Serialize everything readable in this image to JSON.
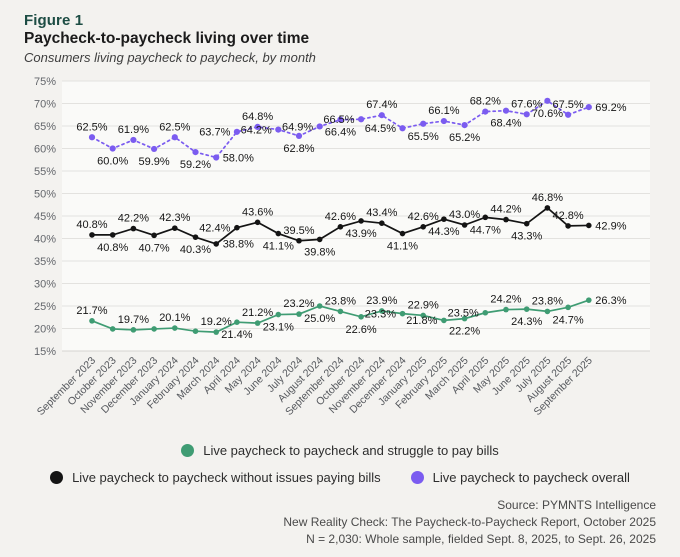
{
  "figure": {
    "label": "Figure 1",
    "title": "Paycheck-to-paycheck living over time",
    "subtitle": "Consumers living paycheck to paycheck, by month"
  },
  "chart_data": {
    "type": "line",
    "x": [
      "September 2023",
      "October 2023",
      "November 2023",
      "December 2023",
      "January 2024",
      "February 2024",
      "March 2024",
      "April 2024",
      "May 2024",
      "June 2024",
      "July 2024",
      "August 2024",
      "September 2024",
      "October 2024",
      "November 2024",
      "December 2024",
      "January 2025",
      "February 2025",
      "March 2025",
      "April 2025",
      "May 2025",
      "June 2025",
      "July 2025",
      "August 2025",
      "September 2025"
    ],
    "ylim": [
      15,
      75
    ],
    "ytick_step": 5,
    "ytick_suffix": "%",
    "grid": true,
    "legend_position": "bottom",
    "series": [
      {
        "name": "Live paycheck to paycheck overall",
        "color": "#7B5CF0",
        "dashed": true,
        "point_r": 3.1,
        "values": [
          62.5,
          60.0,
          61.9,
          59.9,
          62.5,
          59.2,
          58.0,
          63.7,
          64.8,
          64.2,
          62.8,
          64.9,
          66.4,
          66.5,
          67.4,
          64.5,
          65.5,
          66.1,
          65.2,
          68.2,
          68.4,
          67.6,
          70.6,
          67.5,
          69.2
        ],
        "label_pos": [
          "above",
          "below",
          "above",
          "below",
          "above",
          "below",
          "right",
          "left",
          "above",
          "left",
          "below",
          "left",
          "below",
          "left",
          "above",
          "left",
          "below",
          "above",
          "below",
          "above",
          "below",
          "above",
          "below",
          "above",
          "right"
        ]
      },
      {
        "name": "Live paycheck to paycheck without issues paying bills",
        "color": "#141414",
        "dashed": false,
        "point_r": 2.8,
        "values": [
          40.8,
          40.8,
          42.2,
          40.7,
          42.3,
          40.3,
          38.8,
          42.4,
          43.6,
          41.1,
          39.5,
          39.8,
          42.6,
          43.9,
          43.4,
          41.1,
          42.6,
          44.3,
          43.0,
          44.7,
          44.2,
          43.3,
          46.8,
          42.8,
          42.9
        ],
        "label_pos": [
          "above",
          "below",
          "above",
          "below",
          "above",
          "below",
          "right",
          "left",
          "above",
          "below",
          "above",
          "below",
          "above",
          "below",
          "above",
          "below",
          "above",
          "below",
          "above",
          "below",
          "above",
          "below",
          "above",
          "above",
          "right"
        ]
      },
      {
        "name": "Live paycheck to paycheck and struggle to pay bills",
        "color": "#3F9C73",
        "dashed": false,
        "point_r": 2.8,
        "values": [
          21.7,
          19.9,
          19.7,
          19.9,
          20.1,
          19.4,
          19.2,
          21.4,
          21.2,
          23.1,
          23.2,
          25.0,
          23.8,
          22.6,
          23.9,
          23.3,
          22.9,
          21.8,
          22.2,
          23.5,
          24.2,
          24.3,
          23.8,
          24.7,
          26.3
        ],
        "label_pos": [
          "above",
          "none",
          "above",
          "none",
          "above",
          "none",
          "above",
          "below",
          "above",
          "below",
          "above",
          "below",
          "above",
          "below",
          "above",
          "left",
          "above",
          "left",
          "below",
          "left",
          "above",
          "below",
          "above",
          "below",
          "right"
        ]
      }
    ]
  },
  "legend": {
    "rows": [
      [
        {
          "label": "Live paycheck to paycheck and struggle to pay bills",
          "color": "#3F9C73"
        }
      ],
      [
        {
          "label": "Live paycheck to paycheck without issues paying bills",
          "color": "#141414"
        },
        {
          "label": "Live paycheck to paycheck overall",
          "color": "#7B5CF0"
        }
      ]
    ]
  },
  "footer": {
    "lines": [
      "Source: PYMNTS Intelligence",
      "New Reality Check: The Paycheck-to-Paycheck Report, October 2025",
      "N = 2,030: Whole sample, fielded Sept. 8, 2025, to Sept. 26, 2025"
    ]
  }
}
